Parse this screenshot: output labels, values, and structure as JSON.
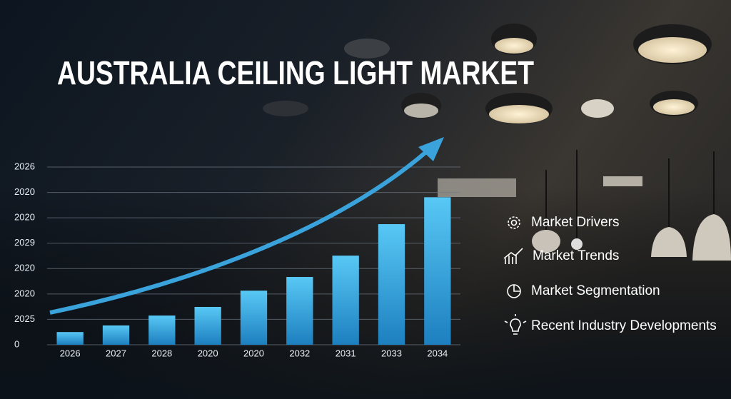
{
  "chart_data": {
    "type": "bar",
    "title": "AUSTRALIA CEILING LIGHT MARKET",
    "categories": [
      "2026",
      "2027",
      "2028",
      "2020",
      "2020",
      "2032",
      "2031",
      "2033",
      "2034"
    ],
    "values": [
      0.5,
      0.76,
      1.15,
      1.49,
      2.13,
      2.67,
      3.51,
      4.75,
      5.81
    ],
    "color": "#3fb3ea",
    "ylim": [
      0,
      7
    ],
    "yticks": [
      0,
      {
        "value": 1,
        "label": "2025"
      },
      {
        "value": 2,
        "label": "2020"
      },
      {
        "value": 3,
        "label": "2020"
      },
      {
        "value": 4,
        "label": "2029"
      },
      {
        "value": 5,
        "label": "2020"
      },
      {
        "value": 6,
        "label": "2020"
      },
      {
        "value": 7,
        "label": "2026"
      }
    ],
    "grid": true
  },
  "menu": {
    "items": [
      "Market Drivers",
      "Market Trends",
      "Market Segmentation",
      "Recent Industry Developments"
    ]
  }
}
